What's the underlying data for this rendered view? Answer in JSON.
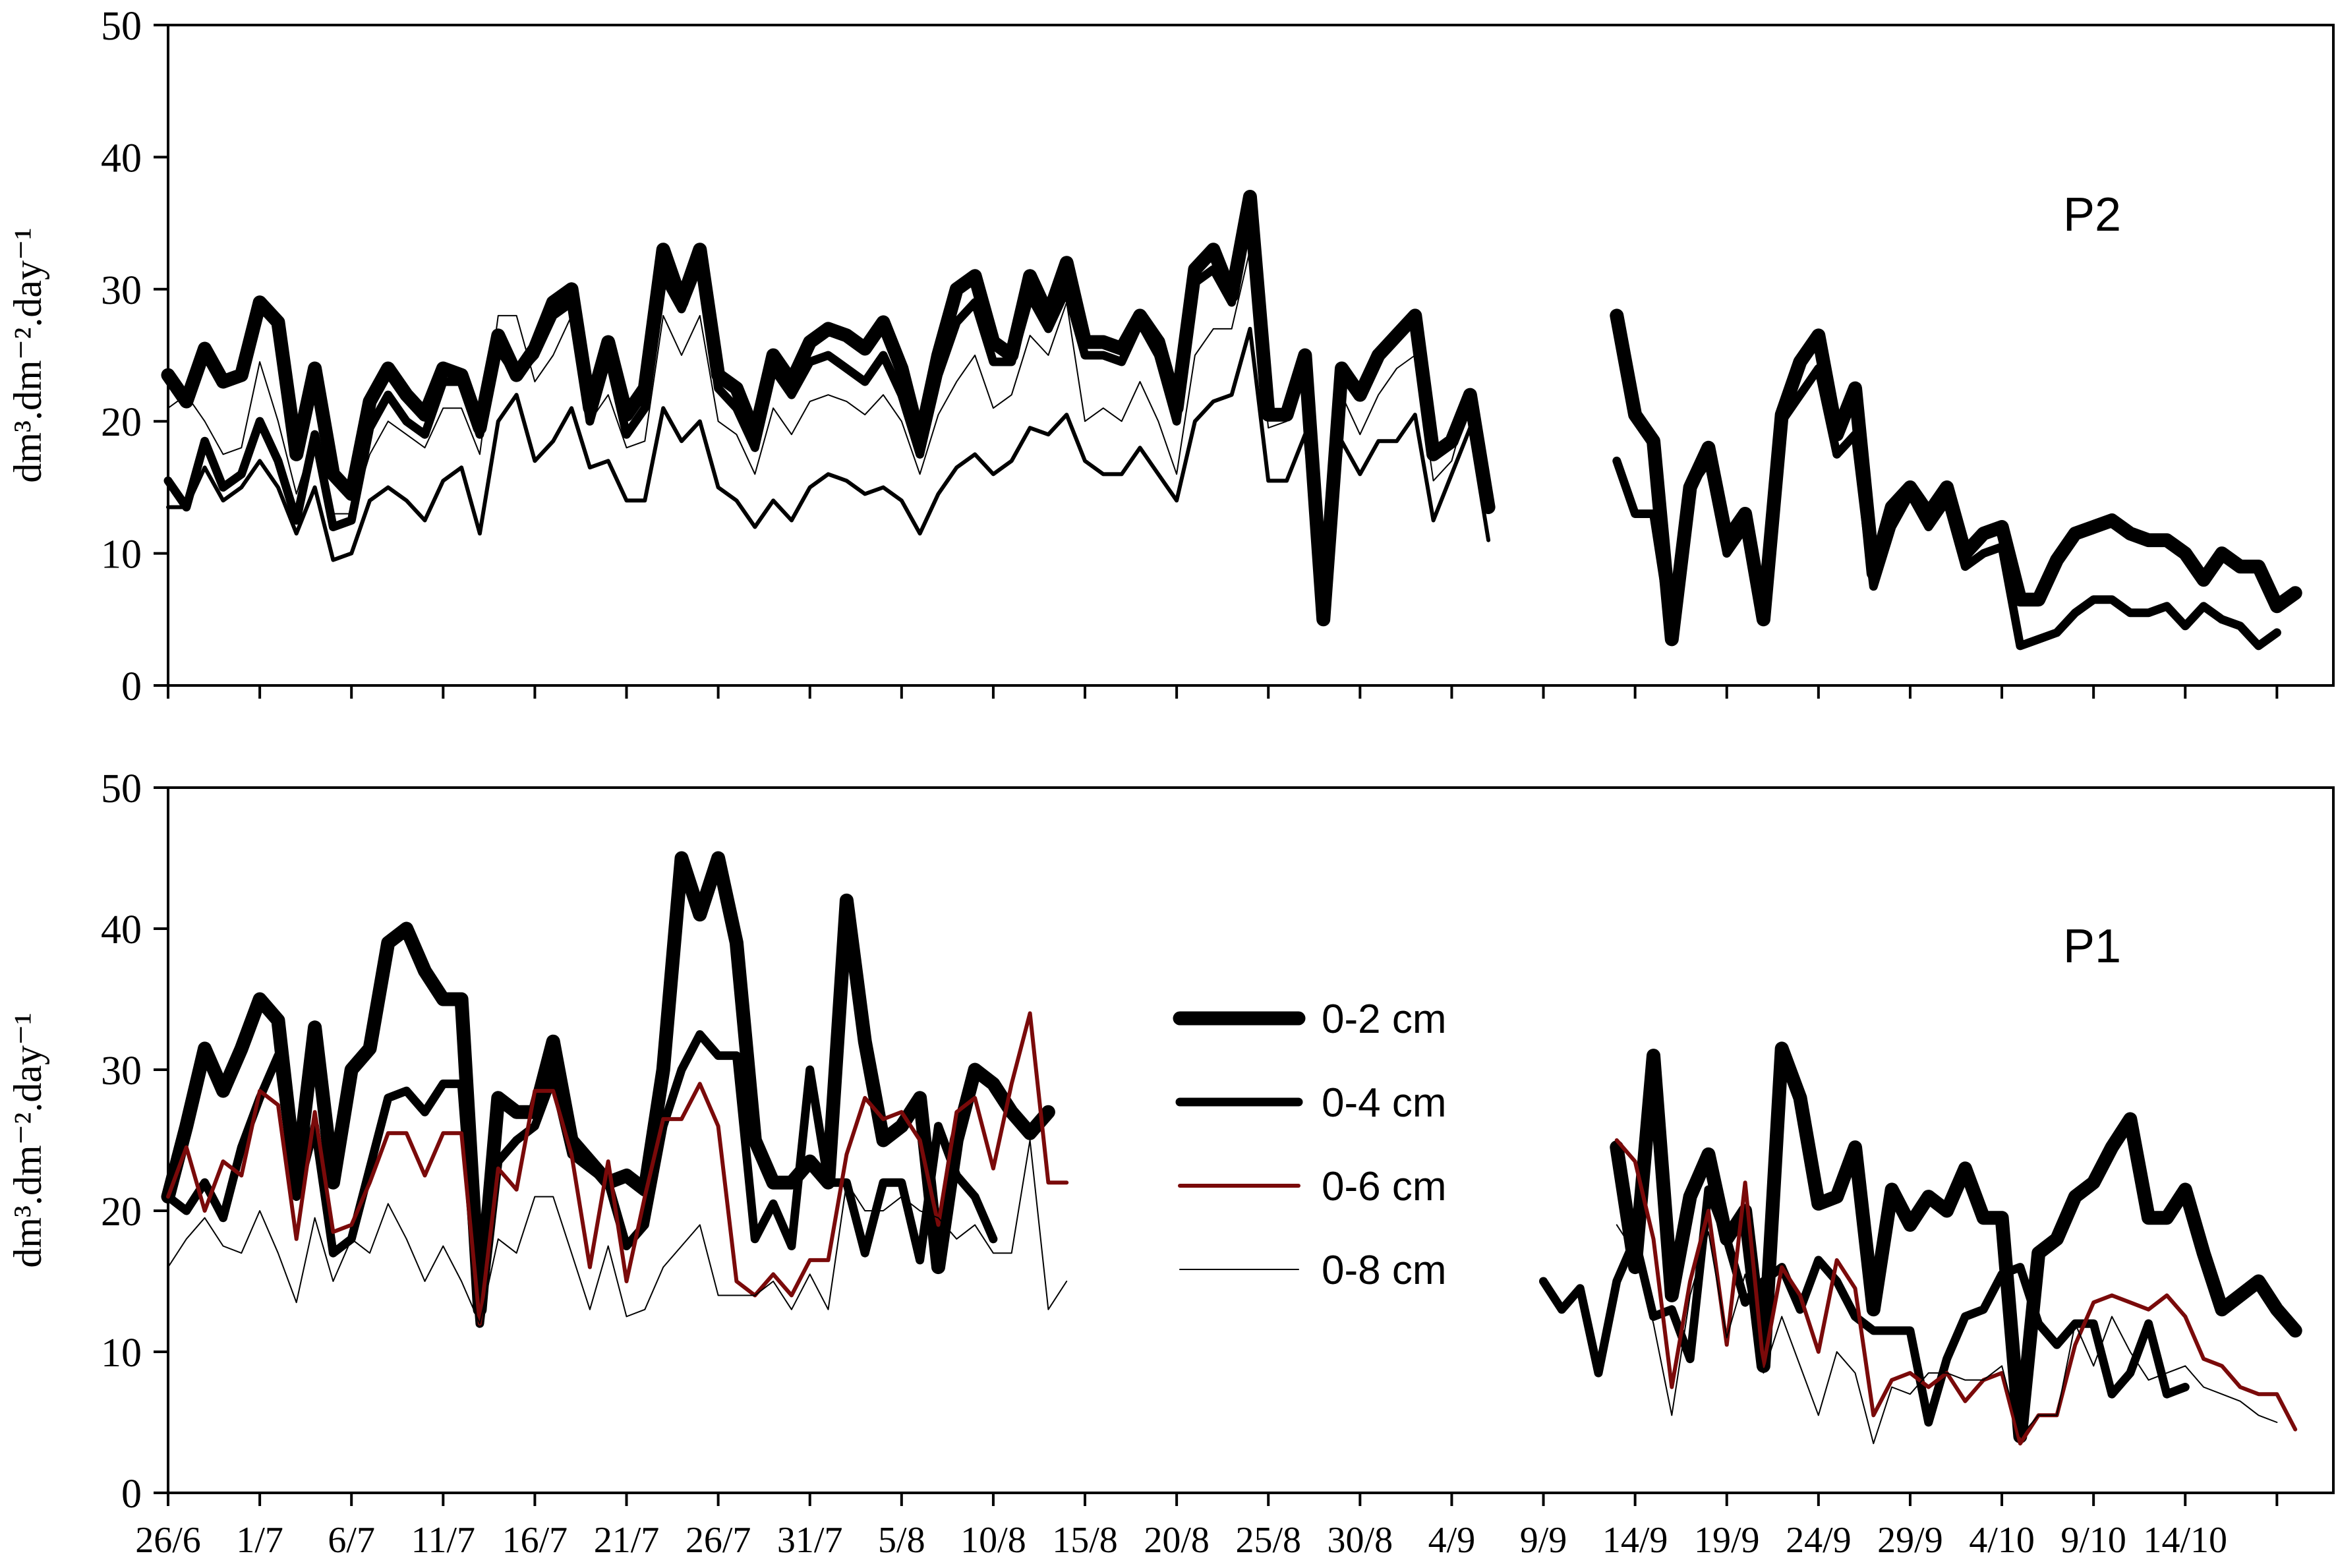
{
  "chart_data": [
    {
      "type": "line",
      "panel_label": "P2",
      "ylabel": "dm³.dm⁻².day⁻¹",
      "ylim": [
        0,
        50
      ],
      "yticks": [
        0,
        10,
        20,
        30,
        40,
        50
      ],
      "x_tick_labels": [],
      "series": [
        {
          "name": "0-2 cm",
          "color": "#000000",
          "values": [
            23.5,
            21.5,
            25.5,
            23,
            23.5,
            29,
            27.5,
            17.5,
            24,
            16,
            14.5,
            21.5,
            24,
            22,
            20.5,
            24,
            23.5,
            19.5,
            26.5,
            23.5,
            25.5,
            29,
            30,
            21,
            26,
            20.5,
            22.5,
            33,
            29,
            33,
            23.5,
            22.5,
            19,
            25,
            23,
            26,
            27,
            26.5,
            25.5,
            27.5,
            24,
            18.5,
            25,
            30,
            31,
            26,
            25,
            31,
            28,
            32,
            26,
            26,
            25.5,
            28,
            26,
            21,
            31.5,
            33,
            29.5,
            37,
            20.5,
            20.5,
            25,
            5,
            24,
            22,
            25,
            26.5,
            28,
            17.5,
            18.5,
            22,
            13.5,
            null,
            null,
            null,
            null,
            null,
            null,
            28,
            20.5,
            18.5,
            3.5,
            15,
            18,
            11,
            13,
            5,
            20.5,
            24.5,
            26.5,
            19,
            22.5,
            8.5,
            13.5,
            15,
            13,
            15,
            10,
            11.5,
            12,
            6.5,
            6.5,
            9.5,
            11.5,
            12,
            12.5,
            11.5,
            11,
            11,
            10,
            8,
            10,
            9,
            9,
            6,
            7
          ]
        },
        {
          "name": "0-4 cm",
          "color": "#000000",
          "values": [
            15.5,
            13.5,
            18.5,
            15,
            16,
            20,
            17,
            12.5,
            19,
            12,
            12.5,
            19.5,
            22,
            20,
            19,
            23,
            23,
            19,
            25.5,
            23.5,
            25,
            28,
            29,
            20,
            25,
            19,
            21,
            31,
            28.5,
            32,
            22.5,
            21,
            18,
            24,
            22,
            24.5,
            25,
            24,
            23,
            25,
            22,
            17.5,
            23.5,
            27.5,
            29,
            24.5,
            24.5,
            29.5,
            27,
            30,
            25,
            25,
            24.5,
            27.5,
            25,
            20,
            30.5,
            31.5,
            29,
            36,
            null,
            null,
            null,
            null,
            null,
            null,
            null,
            null,
            null,
            null,
            null,
            null,
            null,
            null,
            null,
            null,
            null,
            null,
            null,
            17,
            13,
            13,
            4,
            15,
            17,
            10,
            12,
            5,
            20,
            22,
            24,
            17.5,
            19,
            7.5,
            12,
            14.5,
            12,
            14,
            9,
            10,
            10.5,
            3,
            3.5,
            4,
            5.5,
            6.5,
            6.5,
            5.5,
            5.5,
            6,
            4.5,
            6,
            5,
            4.5,
            3,
            4
          ]
        },
        {
          "name": "0-6 cm",
          "color": "#000000",
          "values": [
            13.5,
            13.5,
            16.5,
            14,
            15,
            17,
            15,
            11.5,
            15,
            9.5,
            10,
            14,
            15,
            14,
            12.5,
            15.5,
            16.5,
            11.5,
            20,
            22,
            17,
            18.5,
            21,
            16.5,
            17,
            14,
            14,
            21,
            18.5,
            20,
            15,
            14,
            12,
            14,
            12.5,
            15,
            16,
            15.5,
            14.5,
            15,
            14,
            11.5,
            14.5,
            16.5,
            17.5,
            16,
            17,
            19.5,
            19,
            20.5,
            17,
            16,
            16,
            18,
            16,
            14,
            20,
            21.5,
            22,
            27,
            15.5,
            15.5,
            19,
            5,
            18.5,
            16,
            18.5,
            18.5,
            20.5,
            12.5,
            16,
            19.5,
            11,
            null,
            null,
            null,
            null,
            null,
            null,
            null,
            null,
            null,
            null,
            null,
            null,
            null,
            null,
            null,
            null,
            null,
            null,
            null,
            null,
            null,
            null,
            null,
            null,
            null,
            null,
            null,
            null,
            null,
            null,
            null,
            null,
            null,
            null,
            null,
            null,
            null,
            null,
            null,
            null,
            null,
            null,
            null
          ]
        },
        {
          "name": "0-8 cm",
          "color": "#000000",
          "values": [
            21,
            22,
            20,
            17.5,
            18,
            24.5,
            20,
            14.5,
            19,
            13,
            13,
            17.5,
            20,
            19,
            18,
            21,
            21,
            17.5,
            28,
            28,
            23,
            25,
            28,
            20,
            22,
            18,
            18.5,
            28,
            25,
            28,
            20,
            19,
            16,
            21,
            19,
            21.5,
            22,
            21.5,
            20.5,
            22,
            20,
            16,
            20.5,
            23,
            25,
            21,
            22,
            26.5,
            25,
            29,
            20,
            21,
            20,
            23,
            20,
            16,
            25,
            27,
            27,
            33,
            19.5,
            20,
            24,
            6,
            22,
            19,
            22,
            24,
            25,
            15.5,
            17,
            22,
            11,
            null,
            null,
            null,
            null,
            null,
            null,
            null,
            null,
            null,
            null,
            null,
            null,
            null,
            null,
            null,
            null,
            null,
            null,
            null,
            null,
            null,
            null,
            null,
            null,
            null,
            null,
            null,
            null,
            null,
            null,
            null,
            null,
            null,
            null,
            null,
            null,
            null,
            null,
            null,
            null,
            null,
            null,
            null
          ]
        }
      ]
    },
    {
      "type": "line",
      "panel_label": "P1",
      "ylabel": "dm³.dm⁻².day⁻¹",
      "ylim": [
        0,
        50
      ],
      "yticks": [
        0,
        10,
        20,
        30,
        40,
        50
      ],
      "x_tick_labels": [
        "26/6",
        "1/7",
        "6/7",
        "11/7",
        "16/7",
        "21/7",
        "26/7",
        "31/7",
        "5/8",
        "10/8",
        "15/8",
        "20/8",
        "25/8",
        "30/8",
        "4/9",
        "9/9",
        "14/9",
        "19/9",
        "24/9",
        "29/9",
        "4/10",
        "9/10",
        "14/10"
      ],
      "legend": {
        "placement": "center",
        "entries": [
          "0-2 cm",
          "0-4 cm",
          "0-6 cm",
          "0-8 cm"
        ]
      },
      "series": [
        {
          "name": "0-2 cm",
          "color": "#000000",
          "values": [
            21,
            26,
            31.5,
            28.5,
            31.5,
            35,
            33.5,
            22,
            33,
            22,
            30,
            31.5,
            39,
            40,
            37,
            35,
            35,
            13,
            28,
            27,
            27,
            32,
            25,
            23.5,
            22,
            22.5,
            21.5,
            30,
            45,
            41,
            45,
            39,
            25,
            22,
            22,
            23.5,
            22,
            42,
            32,
            25,
            26,
            28,
            16,
            25,
            30,
            29,
            27,
            25.5,
            27,
            null,
            null,
            null,
            null,
            null,
            null,
            null,
            null,
            null,
            null,
            null,
            null,
            null,
            null,
            null,
            null,
            null,
            null,
            null,
            null,
            null,
            null,
            null,
            null,
            null,
            null,
            null,
            null,
            null,
            null,
            24.5,
            16,
            31,
            14,
            21,
            24,
            18,
            20,
            9,
            31.5,
            28,
            20.5,
            21,
            24.5,
            13,
            21.5,
            19,
            21,
            20,
            23,
            19.5,
            19.5,
            4,
            17,
            18,
            21,
            22,
            24.5,
            26.5,
            19.5,
            19.5,
            21.5,
            17,
            13,
            14,
            15,
            13,
            11.5
          ]
        },
        {
          "name": "0-4 cm",
          "color": "#000000",
          "values": [
            21,
            20,
            22,
            19.5,
            24.5,
            28,
            31,
            21,
            26,
            17,
            18,
            23,
            28,
            28.5,
            27,
            29,
            29,
            12,
            23.5,
            25,
            26,
            29.5,
            24,
            23,
            22,
            17.5,
            19,
            26,
            30,
            32.5,
            31,
            31,
            18,
            20.5,
            17.5,
            30,
            22,
            22,
            17,
            22,
            22,
            16.5,
            26,
            22.5,
            21,
            18,
            null,
            null,
            null,
            null,
            null,
            null,
            null,
            null,
            null,
            null,
            null,
            null,
            null,
            null,
            null,
            null,
            null,
            null,
            null,
            null,
            null,
            null,
            null,
            null,
            null,
            null,
            null,
            null,
            null,
            15,
            13,
            14.5,
            8.5,
            15,
            18,
            12.5,
            13,
            9.5,
            21.5,
            18,
            13.5,
            15,
            16,
            13,
            16.5,
            15,
            12.5,
            11.5,
            11.5,
            11.5,
            5,
            9.5,
            12.5,
            13,
            15.5,
            16,
            12,
            10.5,
            12,
            12,
            7,
            8.5,
            12,
            7,
            7.5
          ]
        },
        {
          "name": "0-6 cm",
          "color": "#7a0a0a",
          "values": [
            21,
            24.5,
            20,
            23.5,
            22.5,
            28.5,
            27.5,
            18,
            27,
            18.5,
            19,
            22,
            25.5,
            25.5,
            22.5,
            25.5,
            25.5,
            12,
            23,
            21.5,
            28.5,
            28.5,
            24,
            16,
            23.5,
            15,
            21,
            26.5,
            26.5,
            29,
            26,
            15,
            14,
            15.5,
            14,
            16.5,
            16.5,
            24,
            28,
            26.5,
            27,
            25,
            19,
            27,
            28,
            23,
            29,
            34,
            22,
            22,
            null,
            null,
            null,
            null,
            null,
            null,
            null,
            null,
            null,
            null,
            null,
            null,
            null,
            null,
            null,
            null,
            null,
            null,
            null,
            null,
            null,
            null,
            null,
            null,
            null,
            null,
            null,
            null,
            null,
            25,
            23.5,
            18,
            7.5,
            15,
            20,
            10.5,
            22,
            9,
            16,
            14,
            10,
            16.5,
            14.5,
            5.5,
            8,
            8.5,
            7.5,
            8.5,
            6.5,
            8,
            8.5,
            3.5,
            5.5,
            5.5,
            10.5,
            13.5,
            14,
            13.5,
            13,
            14,
            12.5,
            9.5,
            9,
            7.5,
            7,
            7,
            4.5
          ]
        },
        {
          "name": "0-8 cm",
          "color": "#000000",
          "values": [
            16,
            18,
            19.5,
            17.5,
            17,
            20,
            17,
            13.5,
            19.5,
            15,
            18,
            17,
            20.5,
            18,
            15,
            17.5,
            15,
            12,
            18,
            17,
            21,
            21,
            17,
            13,
            17.5,
            12.5,
            13,
            16,
            17.5,
            19,
            14,
            14,
            14,
            15,
            13,
            15.5,
            13,
            22,
            20,
            20,
            21,
            20,
            19.5,
            18,
            19,
            17,
            17,
            25,
            13,
            15,
            null,
            null,
            null,
            null,
            null,
            null,
            null,
            null,
            null,
            null,
            null,
            null,
            null,
            null,
            null,
            null,
            null,
            null,
            null,
            null,
            null,
            null,
            null,
            null,
            null,
            null,
            null,
            null,
            null,
            19,
            17,
            12,
            5.5,
            14,
            18.5,
            11,
            15.5,
            8.5,
            12.5,
            9,
            5.5,
            10,
            8.5,
            3.5,
            7.5,
            7,
            8.5,
            8.5,
            8,
            8,
            9,
            4,
            5.5,
            5.5,
            12,
            9,
            12.5,
            10,
            8,
            8.5,
            9,
            7.5,
            7,
            6.5,
            5.5,
            5
          ]
        }
      ]
    }
  ]
}
